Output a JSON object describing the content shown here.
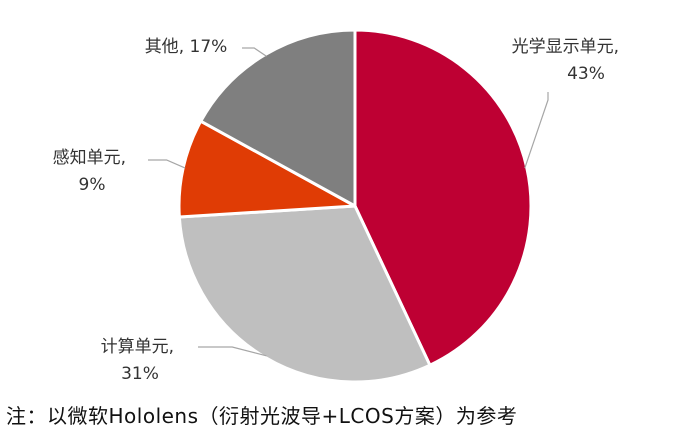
{
  "chart_data": {
    "type": "pie",
    "slices": [
      {
        "label": "光学显示单元",
        "value": 43,
        "value_text": "43%",
        "color": "#BE0033"
      },
      {
        "label": "计算单元",
        "value": 31,
        "value_text": "31%",
        "color": "#BFBFBF"
      },
      {
        "label": "感知单元",
        "value": 9,
        "value_text": "9%",
        "color": "#E03C05"
      },
      {
        "label": "其他",
        "value": 17,
        "value_text": "17%",
        "color": "#7F7F7F"
      }
    ],
    "start": "12 o'clock",
    "direction": "clockwise"
  },
  "note": "注：以微软Hololens（衍射光波导+LCOS方案）为参考"
}
